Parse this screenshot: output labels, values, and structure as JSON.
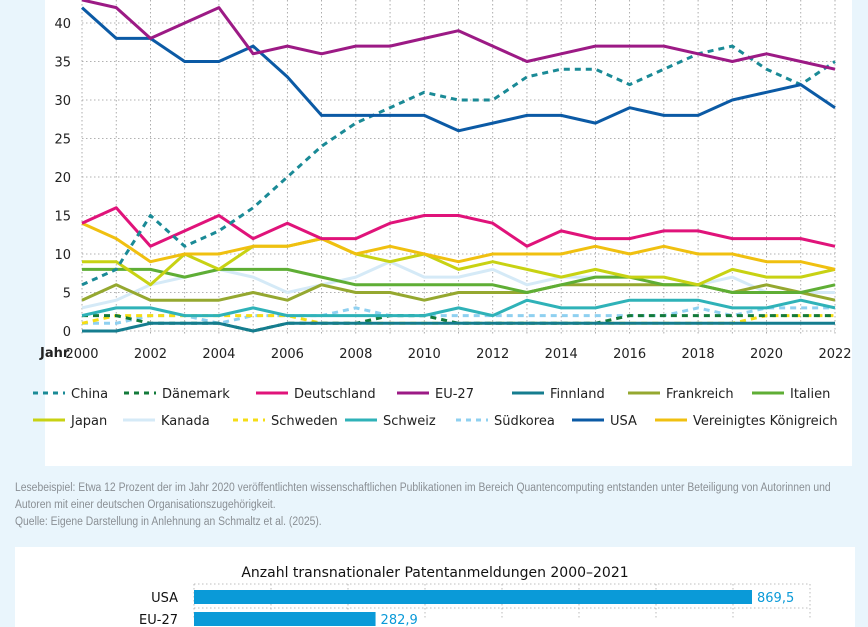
{
  "chart_data": [
    {
      "type": "line",
      "xlabel": "Jahr",
      "ylabel": "",
      "ylim": [
        0,
        43
      ],
      "yticks": [
        0,
        5,
        10,
        15,
        20,
        25,
        30,
        35,
        40
      ],
      "xticks": [
        2000,
        2002,
        2004,
        2006,
        2008,
        2010,
        2012,
        2014,
        2016,
        2018,
        2020,
        2022
      ],
      "grid": true,
      "legend_position": "bottom",
      "x": [
        2000,
        2001,
        2002,
        2003,
        2004,
        2005,
        2006,
        2007,
        2008,
        2009,
        2010,
        2011,
        2012,
        2013,
        2014,
        2015,
        2016,
        2017,
        2018,
        2019,
        2020,
        2021,
        2022
      ],
      "series": [
        {
          "name": "China",
          "color": "#1a8a96",
          "dashed": true,
          "values": [
            6,
            8,
            15,
            11,
            13,
            16,
            20,
            24,
            27,
            29,
            31,
            30,
            30,
            33,
            34,
            34,
            32,
            34,
            36,
            37,
            34,
            32,
            35
          ]
        },
        {
          "name": "Dänemark",
          "color": "#137a3a",
          "dashed": true,
          "values": [
            2,
            2,
            1,
            1,
            1,
            0,
            1,
            1,
            1,
            2,
            2,
            1,
            1,
            1,
            1,
            1,
            2,
            2,
            2,
            2,
            2,
            2,
            2
          ]
        },
        {
          "name": "Deutschland",
          "color": "#e0137a",
          "dashed": false,
          "values": [
            14,
            16,
            11,
            13,
            15,
            12,
            14,
            12,
            12,
            14,
            15,
            15,
            14,
            11,
            13,
            12,
            12,
            13,
            13,
            12,
            12,
            12,
            11
          ]
        },
        {
          "name": "EU-27",
          "color": "#9c1a85",
          "dashed": false,
          "values": [
            43,
            42,
            38,
            40,
            42,
            36,
            37,
            36,
            37,
            37,
            38,
            39,
            37,
            35,
            36,
            37,
            37,
            37,
            36,
            35,
            36,
            35,
            34
          ]
        },
        {
          "name": "Finnland",
          "color": "#157d8f",
          "dashed": false,
          "values": [
            0,
            0,
            1,
            1,
            1,
            0,
            1,
            1,
            1,
            1,
            1,
            1,
            1,
            1,
            1,
            1,
            1,
            1,
            1,
            1,
            1,
            1,
            1
          ]
        },
        {
          "name": "Frankreich",
          "color": "#95a830",
          "dashed": false,
          "values": [
            4,
            6,
            4,
            4,
            4,
            5,
            4,
            6,
            5,
            5,
            4,
            5,
            5,
            5,
            6,
            6,
            6,
            6,
            6,
            5,
            6,
            5,
            4
          ]
        },
        {
          "name": "Italien",
          "color": "#5fae35",
          "dashed": false,
          "values": [
            8,
            8,
            8,
            7,
            8,
            8,
            8,
            7,
            6,
            6,
            6,
            6,
            6,
            5,
            6,
            7,
            7,
            6,
            6,
            5,
            5,
            5,
            6
          ]
        },
        {
          "name": "Japan",
          "color": "#c8d213",
          "dashed": false,
          "values": [
            9,
            9,
            6,
            10,
            8,
            11,
            11,
            12,
            10,
            9,
            10,
            8,
            9,
            8,
            7,
            8,
            7,
            7,
            6,
            8,
            7,
            7,
            8
          ]
        },
        {
          "name": "Kanada",
          "color": "#d5eaf7",
          "dashed": false,
          "values": [
            3,
            4,
            6,
            7,
            8,
            7,
            5,
            6,
            7,
            9,
            7,
            7,
            8,
            6,
            7,
            7,
            7,
            7,
            6,
            7,
            5,
            5,
            5
          ]
        },
        {
          "name": "Schweden",
          "color": "#f5dd15",
          "dashed": true,
          "values": [
            1,
            2,
            2,
            2,
            2,
            2,
            2,
            1,
            1,
            1,
            1,
            1,
            1,
            1,
            1,
            1,
            1,
            1,
            1,
            1,
            2,
            2,
            2
          ]
        },
        {
          "name": "Schweiz",
          "color": "#2fb2b8",
          "dashed": false,
          "values": [
            2,
            3,
            3,
            2,
            2,
            3,
            2,
            2,
            2,
            2,
            2,
            3,
            2,
            4,
            3,
            3,
            4,
            4,
            4,
            3,
            3,
            4,
            3
          ]
        },
        {
          "name": "Südkorea",
          "color": "#8fd0f0",
          "dashed": true,
          "values": [
            1,
            1,
            2,
            2,
            1,
            2,
            2,
            2,
            3,
            2,
            2,
            2,
            2,
            2,
            2,
            2,
            2,
            2,
            3,
            2,
            3,
            3,
            3
          ]
        },
        {
          "name": "USA",
          "color": "#0b5aa5",
          "dashed": false,
          "values": [
            42,
            38,
            38,
            35,
            35,
            37,
            33,
            28,
            28,
            28,
            28,
            26,
            27,
            28,
            28,
            27,
            29,
            28,
            28,
            30,
            31,
            32,
            29
          ]
        },
        {
          "name": "Vereinigtes Königreich",
          "color": "#f0c010",
          "dashed": false,
          "values": [
            14,
            12,
            9,
            10,
            10,
            11,
            11,
            12,
            10,
            11,
            10,
            9,
            10,
            10,
            10,
            11,
            10,
            11,
            10,
            10,
            9,
            9,
            8
          ]
        }
      ]
    },
    {
      "type": "bar",
      "orientation": "horizontal",
      "title": "Anzahl transnationaler Patentanmeldungen 2000–2021",
      "categories": [
        "USA",
        "EU-27"
      ],
      "values": [
        869.5,
        282.9
      ],
      "labels": [
        "869,5",
        "282,9"
      ],
      "color": "#0a9ad8",
      "label_color": "#0a9ad8"
    }
  ],
  "caption": {
    "reading_example": "Lesebeispiel: Etwa 12 Prozent der im Jahr 2020 veröffentlichten wissenschaftlichen Publikationen im Bereich Quantencomputing entstanden unter Beteiligung von Autorinnen und Autoren mit einer deutschen Organisationszugehörigkeit.",
    "source": "Quelle: Eigene Darstellung in Anlehnung an Schmaltz et al. (2025)."
  }
}
